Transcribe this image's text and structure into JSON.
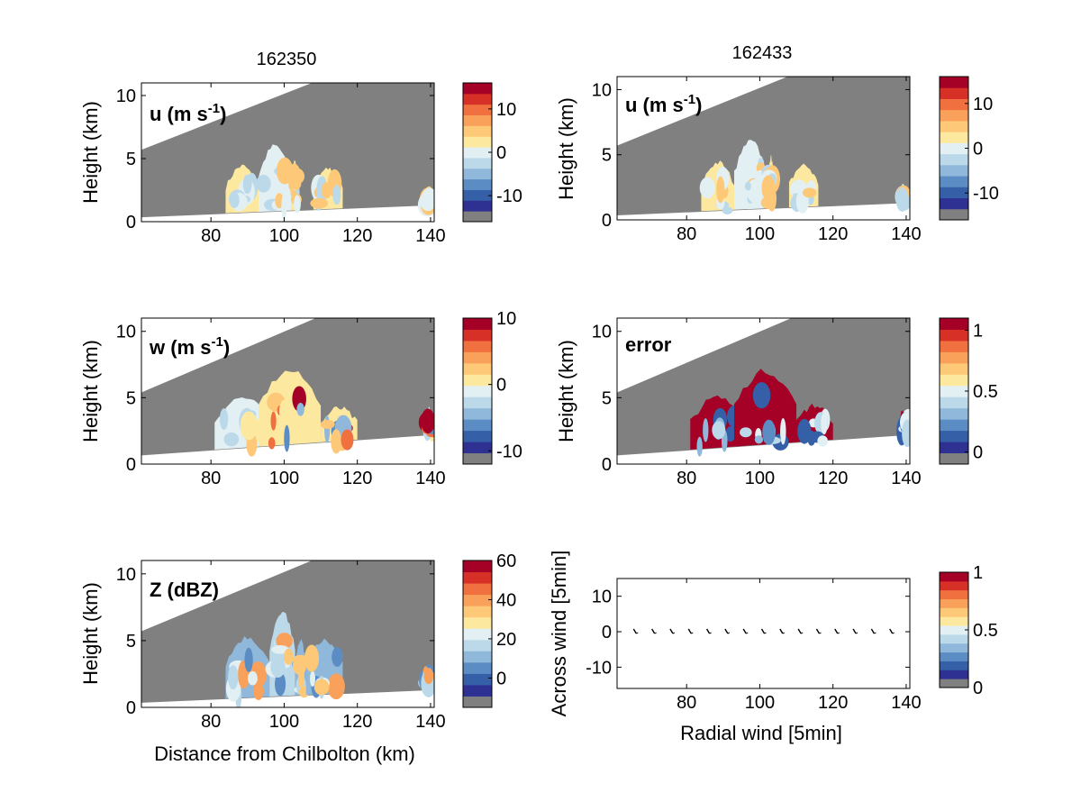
{
  "figure": {
    "column_titles": [
      "162350",
      "162433"
    ],
    "xlabel_left": "Distance from Chilbolton (km)",
    "xlabel_right": "Radial wind [5min]",
    "ylabel": "Height (km)",
    "ylabel_quiver": "Across wind [5min]"
  },
  "colors": {
    "colormap": [
      "#2e3192",
      "#3560a8",
      "#5b8cc4",
      "#8fb8da",
      "#bcd9ea",
      "#e2f0f3",
      "#fde8a0",
      "#fdc877",
      "#f9a15a",
      "#f0703f",
      "#d73027",
      "#a50026"
    ],
    "missing": "#808080",
    "frame": "#000000"
  },
  "chart_data": [
    {
      "id": "u_162350",
      "type": "heatmap",
      "title": "162350",
      "inset_label": "u (m s",
      "inset_label_sup": "-1",
      "inset_label_close": ")",
      "ylabel": "Height (km)",
      "xlim": [
        61,
        141
      ],
      "ylim": [
        0,
        11
      ],
      "xticks": [
        80,
        100,
        120,
        140
      ],
      "yticks": [
        0,
        5,
        10
      ],
      "colorbar": {
        "range": [
          -16,
          16
        ],
        "ticks": [
          10,
          0,
          -10
        ],
        "tick_labels": [
          "10",
          "0",
          "-10"
        ]
      },
      "radar_sector": {
        "top_left_km": 5.7,
        "top_right_km": 14.8,
        "bottom_left_km": 0.35,
        "bottom_right_km": 1.3
      },
      "echoes": [
        {
          "x": [
            84,
            93
          ],
          "top": 4.4,
          "level": 6
        },
        {
          "x": [
            93,
            102
          ],
          "top": 6.0,
          "level": 5
        },
        {
          "x": [
            102,
            104
          ],
          "top": 4.8,
          "level": 6
        },
        {
          "x": [
            108,
            116
          ],
          "top": 4.2,
          "level": 6
        },
        {
          "x": [
            138,
            140
          ],
          "top": 2.2,
          "level": 4
        }
      ]
    },
    {
      "id": "u_162433",
      "type": "heatmap",
      "title": "162433",
      "inset_label": "u (m s",
      "inset_label_sup": "-1",
      "inset_label_close": ")",
      "ylabel": "Height (km)",
      "xlim": [
        61,
        141
      ],
      "ylim": [
        0,
        11
      ],
      "xticks": [
        80,
        100,
        120,
        140
      ],
      "yticks": [
        0,
        5,
        10
      ],
      "colorbar": {
        "range": [
          -16,
          16
        ],
        "ticks": [
          10,
          0,
          -10
        ],
        "tick_labels": [
          "10",
          "0",
          "-10"
        ]
      },
      "radar_sector": {
        "top_left_km": 5.7,
        "top_right_km": 14.8,
        "bottom_left_km": 0.35,
        "bottom_right_km": 1.3
      },
      "echoes": [
        {
          "x": [
            84,
            93
          ],
          "top": 4.4,
          "level": 6
        },
        {
          "x": [
            93,
            102
          ],
          "top": 6.0,
          "level": 5
        },
        {
          "x": [
            102,
            104
          ],
          "top": 4.8,
          "level": 6
        },
        {
          "x": [
            108,
            116
          ],
          "top": 4.2,
          "level": 6
        },
        {
          "x": [
            138,
            140
          ],
          "top": 2.2,
          "level": 4
        }
      ]
    },
    {
      "id": "w",
      "type": "heatmap",
      "inset_label": "w (m s",
      "inset_label_sup": "-1",
      "inset_label_close": ")",
      "ylabel": "Height (km)",
      "xlim": [
        61,
        141
      ],
      "ylim": [
        0,
        11
      ],
      "xticks": [
        80,
        100,
        120,
        140
      ],
      "yticks": [
        0,
        5,
        10
      ],
      "colorbar": {
        "range": [
          -12,
          10
        ],
        "ticks": [
          10,
          0,
          -10
        ],
        "tick_labels": [
          "10",
          "0",
          "-10"
        ]
      },
      "radar_sector": {
        "top_left_km": 5.4,
        "top_right_km": 14.8,
        "bottom_left_km": 0.65,
        "bottom_right_km": 2.2
      },
      "echoes": [
        {
          "x": [
            81,
            96
          ],
          "top": 5.0,
          "level": 5
        },
        {
          "x": [
            93,
            110
          ],
          "top": 7.0,
          "level": 6
        },
        {
          "x": [
            110,
            120
          ],
          "top": 4.2,
          "level": 6
        },
        {
          "x": [
            138,
            141
          ],
          "top": 4.1,
          "level": 5
        }
      ]
    },
    {
      "id": "error",
      "type": "heatmap",
      "inset_label": "error",
      "ylabel": "Height (km)",
      "xlim": [
        61,
        141
      ],
      "ylim": [
        0,
        11
      ],
      "xticks": [
        80,
        100,
        120,
        140
      ],
      "yticks": [
        0,
        5,
        10
      ],
      "colorbar": {
        "range": [
          -0.1,
          1.1
        ],
        "ticks": [
          1,
          0.5,
          0
        ],
        "tick_labels": [
          "1",
          "0.5",
          "0"
        ]
      },
      "radar_sector": {
        "top_left_km": 5.4,
        "top_right_km": 14.8,
        "bottom_left_km": 0.65,
        "bottom_right_km": 2.2
      },
      "echoes": [
        {
          "x": [
            81,
            96
          ],
          "top": 5.0,
          "level": 11
        },
        {
          "x": [
            93,
            110
          ],
          "top": 7.0,
          "level": 11
        },
        {
          "x": [
            110,
            120
          ],
          "top": 4.4,
          "level": 11
        },
        {
          "x": [
            138,
            141
          ],
          "top": 4.1,
          "level": 11
        }
      ]
    },
    {
      "id": "Z",
      "type": "heatmap",
      "inset_label": "Z (dBZ)",
      "ylabel": "Height (km)",
      "xlabel": "Distance from Chilbolton (km)",
      "xlim": [
        61,
        141
      ],
      "ylim": [
        0,
        11
      ],
      "xticks": [
        80,
        100,
        120,
        140
      ],
      "yticks": [
        0,
        5,
        10
      ],
      "colorbar": {
        "range": [
          -15,
          60
        ],
        "ticks": [
          60,
          40,
          20,
          0
        ],
        "tick_labels": [
          "60",
          "40",
          "20",
          "0"
        ]
      },
      "radar_sector": {
        "top_left_km": 5.7,
        "top_right_km": 14.8,
        "bottom_left_km": 0.35,
        "bottom_right_km": 1.3
      },
      "echoes": [
        {
          "x": [
            84,
            96
          ],
          "top": 5.3,
          "level": 3
        },
        {
          "x": [
            96,
            103
          ],
          "top": 7.2,
          "level": 4
        },
        {
          "x": [
            103,
            106
          ],
          "top": 5.0,
          "level": 3
        },
        {
          "x": [
            106,
            116
          ],
          "top": 5.0,
          "level": 3
        },
        {
          "x": [
            138,
            140
          ],
          "top": 3.0,
          "level": 3
        }
      ]
    },
    {
      "id": "quiver",
      "type": "scatter",
      "ylabel": "Across wind [5min]",
      "xlabel": "Radial wind [5min]",
      "xlim": [
        61,
        141
      ],
      "ylim": [
        -16,
        15
      ],
      "xticks": [
        80,
        100,
        120,
        140
      ],
      "yticks": [
        10,
        0,
        -10
      ],
      "colorbar": {
        "range": [
          0,
          1
        ],
        "ticks": [
          1,
          0.5,
          0
        ],
        "tick_labels": [
          "1",
          "0.5",
          "0"
        ]
      },
      "arrows_x": [
        66,
        71,
        76,
        81,
        86,
        91,
        96,
        101,
        106,
        111,
        116,
        121,
        126,
        131,
        136
      ],
      "arrows_y": 0
    }
  ]
}
